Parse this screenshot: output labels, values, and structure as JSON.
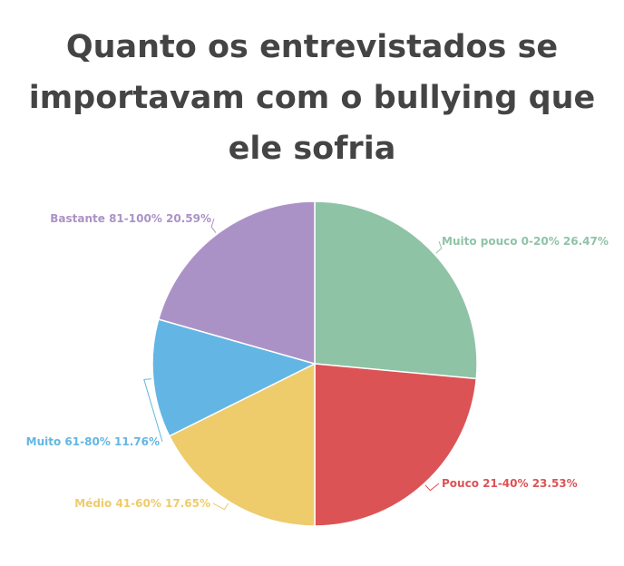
{
  "chart_data": {
    "type": "pie",
    "title": "Quanto os entrevistados se importavam com o bullying que ele sofria",
    "slices": [
      {
        "label": "Muito pouco 0-20% 26.47%",
        "value": 26.47,
        "color": "#8fc3a6"
      },
      {
        "label": "Pouco 21-40% 23.53%",
        "value": 23.53,
        "color": "#dc5355"
      },
      {
        "label": "Médio 41-60% 17.65%",
        "value": 17.65,
        "color": "#eecb6b"
      },
      {
        "label": "Muito 61-80% 11.76%",
        "value": 11.76,
        "color": "#63b6e4"
      },
      {
        "label": "Bastante 81-100% 20.59%",
        "value": 20.59,
        "color": "#ab92c6"
      }
    ]
  }
}
